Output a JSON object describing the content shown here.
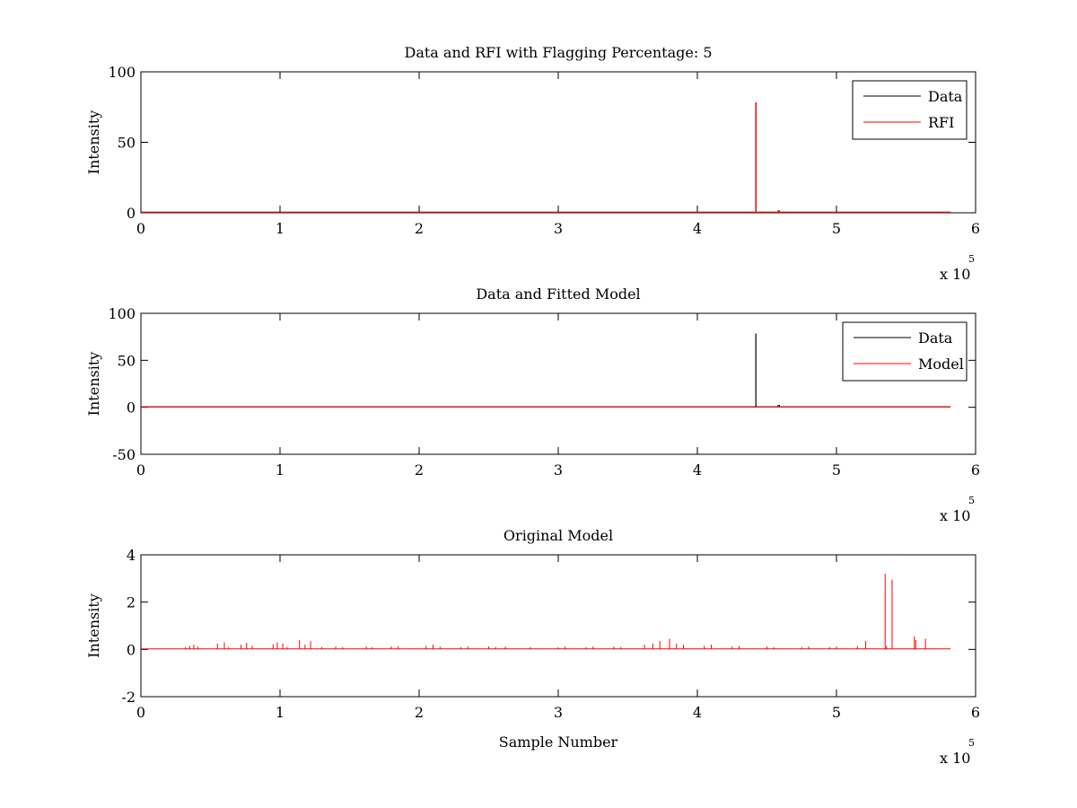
{
  "chart_data": [
    {
      "type": "line",
      "title": "Data and RFI with Flagging Percentage: 5",
      "xlabel": "",
      "ylabel": "Intensity",
      "xlim": [
        0,
        6
      ],
      "ylim": [
        0,
        100
      ],
      "xticks": [
        "0",
        "1",
        "2",
        "3",
        "4",
        "5",
        "6"
      ],
      "yticks": [
        "0",
        "50",
        "100"
      ],
      "x_multiplier_label": "x 10",
      "x_multiplier_exponent": "5",
      "legend": {
        "position": "top-right",
        "entries": [
          "Data",
          "RFI"
        ]
      },
      "series": [
        {
          "name": "Data",
          "color": "#000000",
          "x": [
            0,
            4.42,
            4.42,
            4.421,
            4.421,
            5.82
          ],
          "y": [
            0.5,
            0.5,
            78,
            78,
            0.5,
            0.5
          ]
        },
        {
          "name": "RFI",
          "color": "#ff0000",
          "x": [
            0,
            4.42,
            4.42,
            4.421,
            4.421,
            4.58,
            4.58,
            4.59,
            4.59,
            5.82
          ],
          "y": [
            0.3,
            0.3,
            78,
            78,
            0.3,
            0.3,
            1.5,
            1.5,
            0.3,
            0.3
          ]
        }
      ]
    },
    {
      "type": "line",
      "title": "Data and Fitted Model",
      "xlabel": "",
      "ylabel": "Intensity",
      "xlim": [
        0,
        6
      ],
      "ylim": [
        -50,
        100
      ],
      "xticks": [
        "0",
        "1",
        "2",
        "3",
        "4",
        "5",
        "6"
      ],
      "yticks": [
        "-50",
        "0",
        "50",
        "100"
      ],
      "x_multiplier_label": "x 10",
      "x_multiplier_exponent": "5",
      "legend": {
        "position": "top-right",
        "entries": [
          "Data",
          "Model"
        ]
      },
      "series": [
        {
          "name": "Data",
          "color": "#000000",
          "x": [
            0,
            4.42,
            4.42,
            4.421,
            4.421,
            4.58,
            4.58,
            4.59,
            4.59,
            5.82
          ],
          "y": [
            0.5,
            0.5,
            78,
            78,
            0.5,
            0.5,
            2,
            2,
            0.5,
            0.5
          ]
        },
        {
          "name": "Model",
          "color": "#ff0000",
          "x": [
            0,
            5.82
          ],
          "y": [
            0.3,
            0.3
          ]
        }
      ]
    },
    {
      "type": "line",
      "title": "Original Model",
      "xlabel": "Sample Number",
      "ylabel": "Intensity",
      "xlim": [
        0,
        6
      ],
      "ylim": [
        -2,
        4
      ],
      "xticks": [
        "0",
        "1",
        "2",
        "3",
        "4",
        "5",
        "6"
      ],
      "yticks": [
        "-2",
        "0",
        "2",
        "4"
      ],
      "x_multiplier_label": "x 10",
      "x_multiplier_exponent": "5",
      "legend": null,
      "baseline": 0.02,
      "series": [
        {
          "color": "#ff0000",
          "spikes": [
            [
              0.32,
              0.1
            ],
            [
              0.35,
              0.15
            ],
            [
              0.38,
              0.2
            ],
            [
              0.41,
              0.12
            ],
            [
              0.55,
              0.25
            ],
            [
              0.6,
              0.3
            ],
            [
              0.63,
              0.1
            ],
            [
              0.72,
              0.2
            ],
            [
              0.76,
              0.28
            ],
            [
              0.8,
              0.15
            ],
            [
              0.95,
              0.22
            ],
            [
              0.98,
              0.3
            ],
            [
              1.02,
              0.25
            ],
            [
              1.05,
              0.1
            ],
            [
              1.14,
              0.38
            ],
            [
              1.18,
              0.2
            ],
            [
              1.22,
              0.35
            ],
            [
              1.3,
              0.1
            ],
            [
              1.4,
              0.12
            ],
            [
              1.45,
              0.1
            ],
            [
              1.62,
              0.12
            ],
            [
              1.66,
              0.1
            ],
            [
              1.8,
              0.12
            ],
            [
              1.85,
              0.14
            ],
            [
              2.05,
              0.15
            ],
            [
              2.1,
              0.2
            ],
            [
              2.15,
              0.12
            ],
            [
              2.3,
              0.1
            ],
            [
              2.35,
              0.12
            ],
            [
              2.5,
              0.12
            ],
            [
              2.55,
              0.1
            ],
            [
              2.62,
              0.12
            ],
            [
              2.8,
              0.1
            ],
            [
              3.0,
              0.1
            ],
            [
              3.05,
              0.12
            ],
            [
              3.2,
              0.1
            ],
            [
              3.25,
              0.12
            ],
            [
              3.4,
              0.12
            ],
            [
              3.45,
              0.1
            ],
            [
              3.62,
              0.2
            ],
            [
              3.68,
              0.25
            ],
            [
              3.73,
              0.35
            ],
            [
              3.8,
              0.45
            ],
            [
              3.85,
              0.25
            ],
            [
              3.9,
              0.2
            ],
            [
              4.05,
              0.15
            ],
            [
              4.1,
              0.2
            ],
            [
              4.25,
              0.12
            ],
            [
              4.3,
              0.15
            ],
            [
              4.5,
              0.12
            ],
            [
              4.55,
              0.1
            ],
            [
              4.75,
              0.1
            ],
            [
              4.8,
              0.12
            ],
            [
              4.95,
              0.1
            ],
            [
              5.0,
              0.12
            ],
            [
              5.15,
              0.15
            ],
            [
              5.21,
              0.35
            ],
            [
              5.35,
              3.2
            ],
            [
              5.36,
              0.15
            ],
            [
              5.4,
              2.95
            ],
            [
              5.56,
              0.55
            ],
            [
              5.57,
              0.4
            ],
            [
              5.64,
              0.45
            ]
          ]
        }
      ]
    }
  ]
}
